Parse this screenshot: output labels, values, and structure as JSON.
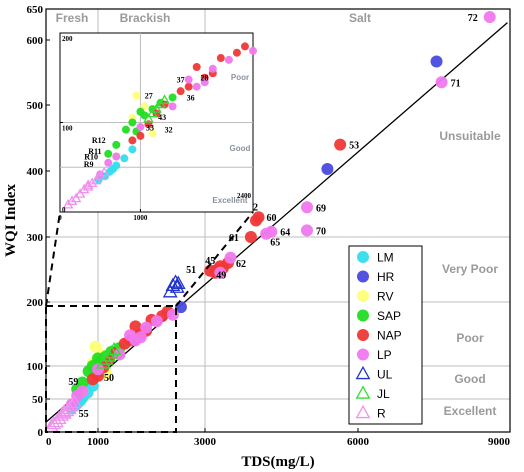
{
  "chart_data": {
    "type": "scatter",
    "xlabel": "TDS(mg/L)",
    "ylabel": "WQI Index",
    "xlim": [
      0,
      9000
    ],
    "ylim": [
      0,
      650
    ],
    "x_ticks": [
      "0",
      "1000",
      "3000",
      "6000",
      "9000"
    ],
    "y_ticks": [
      "0",
      "50",
      "100",
      "200",
      "300",
      "400",
      "500",
      "600",
      "650"
    ],
    "zones_x": {
      "labels": [
        "Fresh",
        "Brackish",
        "Salt"
      ],
      "boundaries": [
        1000,
        3000
      ]
    },
    "zones_y": {
      "labels": [
        "Excellent",
        "Good",
        "Poor",
        "Very Poor",
        "Unsuitable"
      ],
      "boundaries": [
        50,
        100,
        200,
        300
      ]
    },
    "fit_line": [
      [
        0,
        15
      ],
      [
        8950,
        628
      ]
    ],
    "legend": [
      {
        "label": "LM",
        "color": "#33ddee",
        "marker": "circle"
      },
      {
        "label": "HR",
        "color": "#4a4adf",
        "marker": "circle"
      },
      {
        "label": "RV",
        "color": "#ffff77",
        "marker": "circle"
      },
      {
        "label": "SAP",
        "color": "#22dd22",
        "marker": "circle"
      },
      {
        "label": "NAP",
        "color": "#f03838",
        "marker": "circle"
      },
      {
        "label": "LP",
        "color": "#f078ee",
        "marker": "circle"
      },
      {
        "label": "UL",
        "color": "#2233cc",
        "marker": "triangle"
      },
      {
        "label": "JL",
        "color": "#33dd33",
        "marker": "triangle"
      },
      {
        "label": "R",
        "color": "#f090ee",
        "marker": "triangle"
      }
    ],
    "series": [
      {
        "name": "LM",
        "points": [
          [
            560,
            40
          ],
          [
            620,
            45
          ],
          [
            480,
            36
          ],
          [
            700,
            52
          ],
          [
            660,
            48
          ],
          [
            800,
            60
          ],
          [
            900,
            70
          ]
        ]
      },
      {
        "name": "HR",
        "points": [
          [
            2550,
            192
          ],
          [
            3200,
            248
          ],
          [
            5400,
            403
          ],
          [
            7550,
            567
          ]
        ]
      },
      {
        "name": "RV",
        "points": [
          [
            950,
            130
          ],
          [
            1150,
            88
          ],
          [
            1050,
            118
          ],
          [
            700,
            62
          ],
          [
            900,
            105
          ]
        ]
      },
      {
        "name": "SAP",
        "points": [
          [
            820,
            92
          ],
          [
            900,
            100
          ],
          [
            1000,
            112
          ],
          [
            1250,
            122
          ],
          [
            1400,
            128
          ],
          [
            1150,
            115
          ],
          [
            1050,
            108
          ],
          [
            950,
            90
          ],
          [
            700,
            75
          ],
          [
            600,
            65
          ]
        ]
      },
      {
        "name": "NAP",
        "points": [
          [
            1900,
            155
          ],
          [
            2000,
            172
          ],
          [
            2200,
            178
          ],
          [
            1700,
            162
          ],
          [
            1800,
            150
          ],
          [
            2300,
            185
          ],
          [
            1600,
            140
          ],
          [
            1300,
            120
          ],
          [
            1200,
            110
          ],
          [
            1100,
            98
          ],
          [
            1000,
            85
          ],
          [
            900,
            80
          ],
          [
            3100,
            248
          ],
          [
            3250,
            250
          ],
          [
            3300,
            255
          ],
          [
            3350,
            252
          ],
          [
            3450,
            260
          ],
          [
            3200,
            245
          ],
          [
            3900,
            300
          ],
          [
            4000,
            325
          ],
          [
            4050,
            330
          ],
          [
            5650,
            440
          ],
          [
            1500,
            135
          ]
        ]
      },
      {
        "name": "LP",
        "points": [
          [
            1700,
            140
          ],
          [
            1600,
            148
          ],
          [
            1800,
            145
          ],
          [
            1900,
            160
          ],
          [
            2100,
            170
          ],
          [
            2400,
            180
          ],
          [
            3500,
            268
          ],
          [
            4200,
            305
          ],
          [
            4300,
            308
          ],
          [
            5000,
            345
          ],
          [
            5000,
            310
          ],
          [
            7650,
            535
          ],
          [
            8600,
            637
          ],
          [
            3300,
            245
          ],
          [
            1400,
            118
          ],
          [
            1000,
            95
          ],
          [
            700,
            62
          ],
          [
            600,
            55
          ],
          [
            500,
            42
          ]
        ]
      },
      {
        "name": "UL",
        "points": [
          [
            2350,
            215
          ],
          [
            2400,
            225
          ],
          [
            2450,
            230
          ],
          [
            2480,
            222
          ],
          [
            2500,
            228
          ]
        ]
      },
      {
        "name": "JL",
        "points": [
          [
            1150,
            110
          ],
          [
            1200,
            115
          ],
          [
            1250,
            120
          ],
          [
            1300,
            125
          ],
          [
            1100,
            104
          ]
        ]
      },
      {
        "name": "R",
        "points": [
          [
            300,
            25
          ],
          [
            350,
            28
          ],
          [
            400,
            32
          ],
          [
            450,
            35
          ],
          [
            500,
            40
          ],
          [
            550,
            44
          ],
          [
            250,
            20
          ],
          [
            200,
            15
          ],
          [
            150,
            12
          ],
          [
            100,
            8
          ],
          [
            350,
            30
          ]
        ]
      }
    ],
    "point_labels": [
      {
        "text": "72",
        "x": 8600,
        "y": 637
      },
      {
        "text": "71",
        "x": 7650,
        "y": 535
      },
      {
        "text": "53",
        "x": 5650,
        "y": 440
      },
      {
        "text": "52",
        "x": 4000,
        "y": 325
      },
      {
        "text": "60",
        "x": 4050,
        "y": 330
      },
      {
        "text": "69",
        "x": 5000,
        "y": 345
      },
      {
        "text": "61",
        "x": 3900,
        "y": 300
      },
      {
        "text": "64",
        "x": 4300,
        "y": 308
      },
      {
        "text": "70",
        "x": 5000,
        "y": 310
      },
      {
        "text": "65",
        "x": 4200,
        "y": 305
      },
      {
        "text": "45",
        "x": 3200,
        "y": 245
      },
      {
        "text": "62",
        "x": 3450,
        "y": 260
      },
      {
        "text": "51",
        "x": 3100,
        "y": 248
      },
      {
        "text": "49",
        "x": 3300,
        "y": 255
      },
      {
        "text": "59",
        "x": 700,
        "y": 62
      },
      {
        "text": "50",
        "x": 1000,
        "y": 85
      },
      {
        "text": "55",
        "x": 550,
        "y": 44
      }
    ],
    "inset": {
      "xlim": [
        0,
        2400
      ],
      "ylim": [
        0,
        200
      ],
      "x_ticks": [
        "0",
        "1000",
        "2400"
      ],
      "y_ticks": [
        "0",
        "100",
        "200"
      ],
      "zone_labels": [
        "Poor",
        "Good",
        "Excellent"
      ],
      "point_labels": [
        {
          "text": "27",
          "x": 980,
          "y": 130
        },
        {
          "text": "37",
          "x": 1500,
          "y": 138
        },
        {
          "text": "28",
          "x": 1720,
          "y": 140
        },
        {
          "text": "36",
          "x": 1600,
          "y": 128
        },
        {
          "text": "43",
          "x": 1320,
          "y": 112
        },
        {
          "text": "33",
          "x": 1020,
          "y": 101
        },
        {
          "text": "32",
          "x": 1400,
          "y": 100
        },
        {
          "text": "R12",
          "x": 620,
          "y": 77
        },
        {
          "text": "R11",
          "x": 550,
          "y": 67
        },
        {
          "text": "R10",
          "x": 500,
          "y": 61
        },
        {
          "text": "R9",
          "x": 470,
          "y": 55
        }
      ]
    }
  }
}
